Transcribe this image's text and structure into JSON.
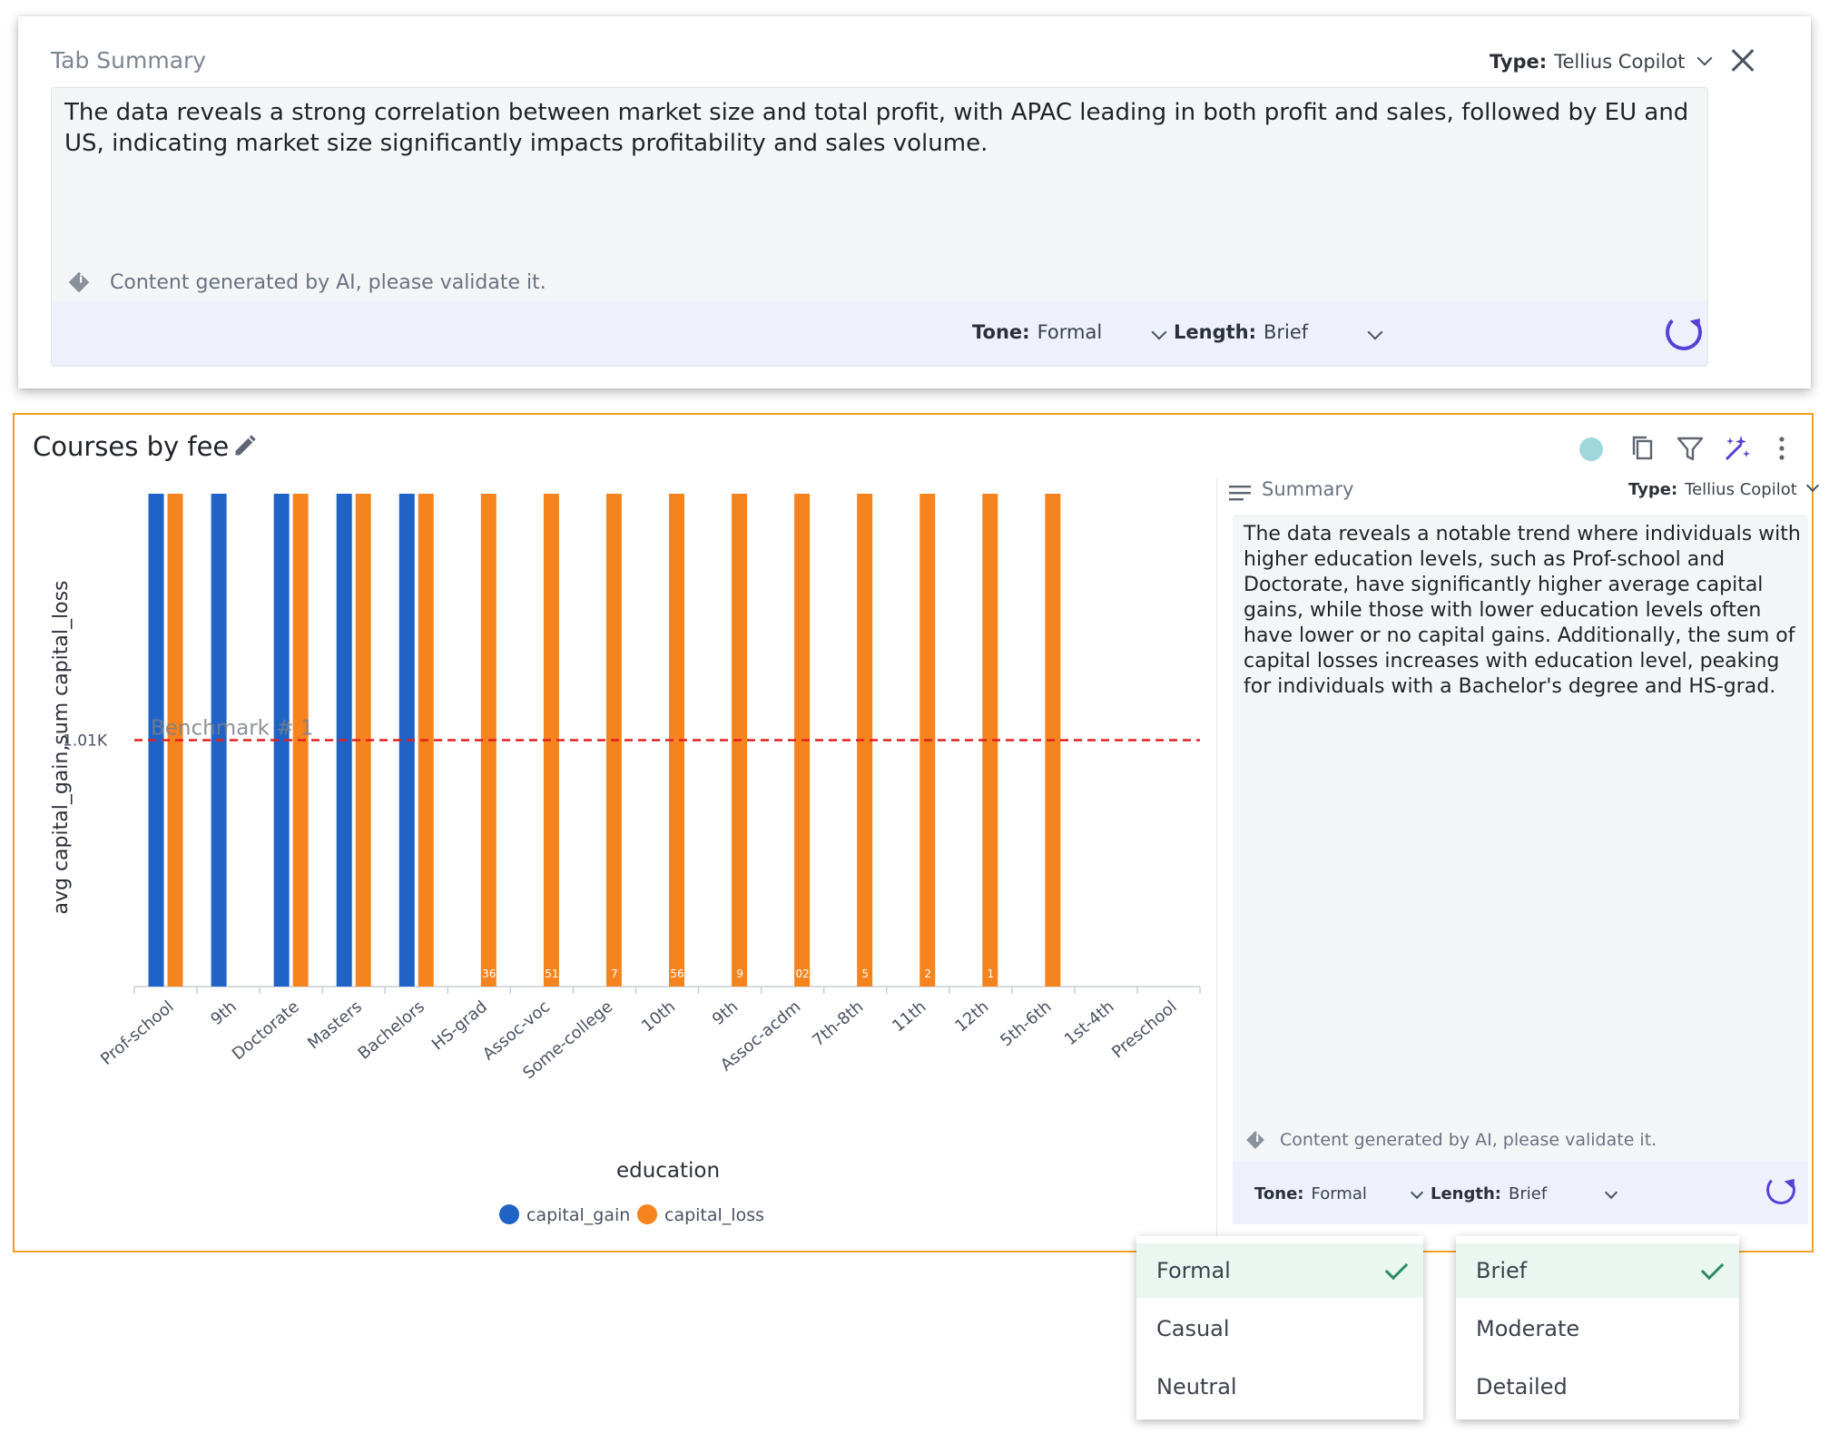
{
  "tab_summary": {
    "title": "Tab Summary",
    "type_label": "Type:",
    "type_value": "Tellius Copilot",
    "text": "The data reveals a strong correlation between market size and total profit, with APAC leading in both profit and sales, followed by EU and US, indicating market size significantly impacts profitability and sales volume.",
    "ai_note": "Content generated by AI, please validate it.",
    "tone_label": "Tone:",
    "tone_value": "Formal",
    "length_label": "Length:",
    "length_value": "Brief"
  },
  "chart_card": {
    "title": "Courses by fee",
    "icons": [
      "edit-icon",
      "status-dot-icon",
      "copy-icon",
      "filter-icon",
      "magic-wand-icon",
      "more-vertical-icon"
    ],
    "status_color": "#9fd8dc",
    "accent_color": "#5a3fd6"
  },
  "chart_data": {
    "type": "bar",
    "xlabel": "education",
    "ylabel": "avg capital_gain,sum capital_loss",
    "categories": [
      "Prof-school",
      "9th",
      "Doctorate",
      "Masters",
      "Bachelors",
      "HS-grad",
      "Assoc-voc",
      "Some-college",
      "10th",
      "9th",
      "Assoc-acdm",
      "7th-8th",
      "11th",
      "12th",
      "5th-6th",
      "1st-4th",
      "Preschool"
    ],
    "series": [
      {
        "name": "capital_gain",
        "color": "#1f63c6",
        "values": [
          2020,
          2020,
          2020,
          2020,
          2020,
          0,
          0,
          0,
          0,
          0,
          0,
          0,
          0,
          0,
          0,
          0,
          0
        ]
      },
      {
        "name": "capital_loss",
        "color": "#f5841f",
        "values": [
          2020,
          0,
          2020,
          2020,
          2020,
          2020,
          2020,
          2020,
          2020,
          2020,
          2020,
          2020,
          2020,
          2020,
          2020,
          0,
          0
        ]
      }
    ],
    "bar_labels": [
      "",
      "",
      "",
      "",
      "",
      "36",
      "51",
      "7",
      "56",
      "9",
      "02",
      "5",
      "2",
      "1",
      "",
      "",
      ""
    ],
    "y_tick_label": "1.01K",
    "y_tick_value": 1010,
    "ylim": [
      0,
      2020
    ],
    "benchmark": {
      "label": "Benchmark # 1",
      "value": 1010,
      "color": "#e02020"
    },
    "legend_position": "bottom"
  },
  "side_summary": {
    "title": "Summary",
    "type_label": "Type:",
    "type_value": "Tellius Copilot",
    "text": "The data reveals a notable trend where individuals with higher education levels, such as Prof-school and Doctorate, have significantly higher average capital gains, while those with lower education levels often have lower or no capital gains. Additionally, the sum of capital losses increases with education level, peaking for individuals with a Bachelor's degree and HS-grad.",
    "ai_note": "Content generated by AI, please validate it.",
    "tone_label": "Tone:",
    "tone_value": "Formal",
    "length_label": "Length:",
    "length_value": "Brief"
  },
  "tone_dropdown": {
    "options": [
      "Formal",
      "Casual",
      "Neutral"
    ],
    "selected": "Formal"
  },
  "length_dropdown": {
    "options": [
      "Brief",
      "Moderate",
      "Detailed"
    ],
    "selected": "Brief"
  }
}
